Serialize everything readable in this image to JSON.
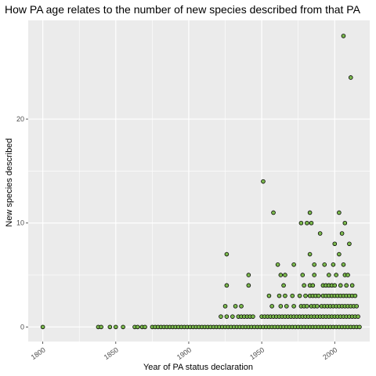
{
  "chart_data": {
    "type": "scatter",
    "title": "How PA age relates to the number of new species described from that PA",
    "xlabel": "Year of PA status declaration",
    "ylabel": "New species described",
    "xlim": [
      1790,
      2024
    ],
    "ylim": [
      -1.4,
      29.5
    ],
    "x_ticks": [
      1800,
      1850,
      1900,
      1950,
      2000
    ],
    "x_tick_labels": [
      "1800",
      "1850",
      "1900",
      "1950",
      "2000"
    ],
    "y_ticks": [
      0,
      10,
      20
    ],
    "y_tick_labels": [
      "0",
      "10",
      "20"
    ],
    "grid": true,
    "legend": "none",
    "colors": {
      "panel_background": "#ebebeb",
      "grid_major": "#ffffff",
      "point_fill": "#7cba4e",
      "point_stroke": "#000000"
    },
    "points": [
      {
        "x": 1800,
        "y": 0
      },
      {
        "x": 1838,
        "y": 0
      },
      {
        "x": 1840,
        "y": 0
      },
      {
        "x": 1846,
        "y": 0
      },
      {
        "x": 1850,
        "y": 0
      },
      {
        "x": 1855,
        "y": 0
      },
      {
        "x": 1863,
        "y": 0
      },
      {
        "x": 1865,
        "y": 0
      },
      {
        "x": 1868,
        "y": 0
      },
      {
        "x": 1870,
        "y": 0
      },
      {
        "x": 1875,
        "y": 0
      },
      {
        "x": 1877,
        "y": 0
      },
      {
        "x": 1879,
        "y": 0
      },
      {
        "x": 1881,
        "y": 0
      },
      {
        "x": 1883,
        "y": 0
      },
      {
        "x": 1885,
        "y": 0
      },
      {
        "x": 1887,
        "y": 0
      },
      {
        "x": 1889,
        "y": 0
      },
      {
        "x": 1891,
        "y": 0
      },
      {
        "x": 1893,
        "y": 0
      },
      {
        "x": 1895,
        "y": 0
      },
      {
        "x": 1897,
        "y": 0
      },
      {
        "x": 1899,
        "y": 0
      },
      {
        "x": 1901,
        "y": 0
      },
      {
        "x": 1903,
        "y": 0
      },
      {
        "x": 1905,
        "y": 0
      },
      {
        "x": 1907,
        "y": 0
      },
      {
        "x": 1909,
        "y": 0
      },
      {
        "x": 1911,
        "y": 0
      },
      {
        "x": 1913,
        "y": 0
      },
      {
        "x": 1915,
        "y": 0
      },
      {
        "x": 1917,
        "y": 0
      },
      {
        "x": 1919,
        "y": 0
      },
      {
        "x": 1921,
        "y": 0
      },
      {
        "x": 1923,
        "y": 0
      },
      {
        "x": 1925,
        "y": 0
      },
      {
        "x": 1927,
        "y": 0
      },
      {
        "x": 1929,
        "y": 0
      },
      {
        "x": 1931,
        "y": 0
      },
      {
        "x": 1933,
        "y": 0
      },
      {
        "x": 1935,
        "y": 0
      },
      {
        "x": 1937,
        "y": 0
      },
      {
        "x": 1939,
        "y": 0
      },
      {
        "x": 1941,
        "y": 0
      },
      {
        "x": 1943,
        "y": 0
      },
      {
        "x": 1945,
        "y": 0
      },
      {
        "x": 1947,
        "y": 0
      },
      {
        "x": 1949,
        "y": 0
      },
      {
        "x": 1951,
        "y": 0
      },
      {
        "x": 1953,
        "y": 0
      },
      {
        "x": 1955,
        "y": 0
      },
      {
        "x": 1957,
        "y": 0
      },
      {
        "x": 1959,
        "y": 0
      },
      {
        "x": 1961,
        "y": 0
      },
      {
        "x": 1963,
        "y": 0
      },
      {
        "x": 1965,
        "y": 0
      },
      {
        "x": 1967,
        "y": 0
      },
      {
        "x": 1969,
        "y": 0
      },
      {
        "x": 1971,
        "y": 0
      },
      {
        "x": 1973,
        "y": 0
      },
      {
        "x": 1975,
        "y": 0
      },
      {
        "x": 1977,
        "y": 0
      },
      {
        "x": 1979,
        "y": 0
      },
      {
        "x": 1981,
        "y": 0
      },
      {
        "x": 1983,
        "y": 0
      },
      {
        "x": 1985,
        "y": 0
      },
      {
        "x": 1987,
        "y": 0
      },
      {
        "x": 1989,
        "y": 0
      },
      {
        "x": 1991,
        "y": 0
      },
      {
        "x": 1993,
        "y": 0
      },
      {
        "x": 1995,
        "y": 0
      },
      {
        "x": 1997,
        "y": 0
      },
      {
        "x": 1999,
        "y": 0
      },
      {
        "x": 2001,
        "y": 0
      },
      {
        "x": 2003,
        "y": 0
      },
      {
        "x": 2005,
        "y": 0
      },
      {
        "x": 2007,
        "y": 0
      },
      {
        "x": 2009,
        "y": 0
      },
      {
        "x": 2011,
        "y": 0
      },
      {
        "x": 2013,
        "y": 0
      },
      {
        "x": 2015,
        "y": 0
      },
      {
        "x": 2017,
        "y": 0
      },
      {
        "x": 1922,
        "y": 1
      },
      {
        "x": 1926,
        "y": 1
      },
      {
        "x": 1930,
        "y": 1
      },
      {
        "x": 1934,
        "y": 1
      },
      {
        "x": 1936,
        "y": 1
      },
      {
        "x": 1938,
        "y": 1
      },
      {
        "x": 1940,
        "y": 1
      },
      {
        "x": 1942,
        "y": 1
      },
      {
        "x": 1944,
        "y": 1
      },
      {
        "x": 1950,
        "y": 1
      },
      {
        "x": 1952,
        "y": 1
      },
      {
        "x": 1954,
        "y": 1
      },
      {
        "x": 1956,
        "y": 1
      },
      {
        "x": 1958,
        "y": 1
      },
      {
        "x": 1960,
        "y": 1
      },
      {
        "x": 1962,
        "y": 1
      },
      {
        "x": 1964,
        "y": 1
      },
      {
        "x": 1966,
        "y": 1
      },
      {
        "x": 1968,
        "y": 1
      },
      {
        "x": 1970,
        "y": 1
      },
      {
        "x": 1972,
        "y": 1
      },
      {
        "x": 1974,
        "y": 1
      },
      {
        "x": 1976,
        "y": 1
      },
      {
        "x": 1978,
        "y": 1
      },
      {
        "x": 1980,
        "y": 1
      },
      {
        "x": 1982,
        "y": 1
      },
      {
        "x": 1984,
        "y": 1
      },
      {
        "x": 1986,
        "y": 1
      },
      {
        "x": 1988,
        "y": 1
      },
      {
        "x": 1990,
        "y": 1
      },
      {
        "x": 1992,
        "y": 1
      },
      {
        "x": 1994,
        "y": 1
      },
      {
        "x": 1996,
        "y": 1
      },
      {
        "x": 1998,
        "y": 1
      },
      {
        "x": 2000,
        "y": 1
      },
      {
        "x": 2002,
        "y": 1
      },
      {
        "x": 2004,
        "y": 1
      },
      {
        "x": 2006,
        "y": 1
      },
      {
        "x": 2008,
        "y": 1
      },
      {
        "x": 2010,
        "y": 1
      },
      {
        "x": 2012,
        "y": 1
      },
      {
        "x": 2014,
        "y": 1
      },
      {
        "x": 2016,
        "y": 1
      },
      {
        "x": 1925,
        "y": 2
      },
      {
        "x": 1932,
        "y": 2
      },
      {
        "x": 1936,
        "y": 2
      },
      {
        "x": 1957,
        "y": 2
      },
      {
        "x": 1963,
        "y": 2
      },
      {
        "x": 1967,
        "y": 2
      },
      {
        "x": 1972,
        "y": 2
      },
      {
        "x": 1977,
        "y": 2
      },
      {
        "x": 1979,
        "y": 2
      },
      {
        "x": 1981,
        "y": 2
      },
      {
        "x": 1984,
        "y": 2
      },
      {
        "x": 1986,
        "y": 2
      },
      {
        "x": 1988,
        "y": 2
      },
      {
        "x": 1991,
        "y": 2
      },
      {
        "x": 1993,
        "y": 2
      },
      {
        "x": 1995,
        "y": 2
      },
      {
        "x": 1997,
        "y": 2
      },
      {
        "x": 1999,
        "y": 2
      },
      {
        "x": 2001,
        "y": 2
      },
      {
        "x": 2003,
        "y": 2
      },
      {
        "x": 2005,
        "y": 2
      },
      {
        "x": 2007,
        "y": 2
      },
      {
        "x": 2009,
        "y": 2
      },
      {
        "x": 2011,
        "y": 2
      },
      {
        "x": 2013,
        "y": 2
      },
      {
        "x": 2015,
        "y": 2
      },
      {
        "x": 1955,
        "y": 3
      },
      {
        "x": 1962,
        "y": 3
      },
      {
        "x": 1966,
        "y": 3
      },
      {
        "x": 1971,
        "y": 3
      },
      {
        "x": 1976,
        "y": 3
      },
      {
        "x": 1980,
        "y": 3
      },
      {
        "x": 1983,
        "y": 3
      },
      {
        "x": 1985,
        "y": 3
      },
      {
        "x": 1987,
        "y": 3
      },
      {
        "x": 1989,
        "y": 3
      },
      {
        "x": 1992,
        "y": 3
      },
      {
        "x": 1994,
        "y": 3
      },
      {
        "x": 1996,
        "y": 3
      },
      {
        "x": 1998,
        "y": 3
      },
      {
        "x": 2000,
        "y": 3
      },
      {
        "x": 2002,
        "y": 3
      },
      {
        "x": 2004,
        "y": 3
      },
      {
        "x": 2006,
        "y": 3
      },
      {
        "x": 2008,
        "y": 3
      },
      {
        "x": 2010,
        "y": 3
      },
      {
        "x": 2012,
        "y": 3
      },
      {
        "x": 2014,
        "y": 3
      },
      {
        "x": 1926,
        "y": 4
      },
      {
        "x": 1941,
        "y": 4
      },
      {
        "x": 1965,
        "y": 4
      },
      {
        "x": 1979,
        "y": 4
      },
      {
        "x": 1983,
        "y": 4
      },
      {
        "x": 1985,
        "y": 4
      },
      {
        "x": 1992,
        "y": 4
      },
      {
        "x": 1994,
        "y": 4
      },
      {
        "x": 1996,
        "y": 4
      },
      {
        "x": 1998,
        "y": 4
      },
      {
        "x": 2000,
        "y": 4
      },
      {
        "x": 2004,
        "y": 4
      },
      {
        "x": 2008,
        "y": 4
      },
      {
        "x": 2012,
        "y": 4
      },
      {
        "x": 1941,
        "y": 5
      },
      {
        "x": 1963,
        "y": 5
      },
      {
        "x": 1966,
        "y": 5
      },
      {
        "x": 1978,
        "y": 5
      },
      {
        "x": 1986,
        "y": 5
      },
      {
        "x": 1996,
        "y": 5
      },
      {
        "x": 2001,
        "y": 5
      },
      {
        "x": 2007,
        "y": 5
      },
      {
        "x": 2009,
        "y": 5
      },
      {
        "x": 1961,
        "y": 6
      },
      {
        "x": 1972,
        "y": 6
      },
      {
        "x": 1986,
        "y": 6
      },
      {
        "x": 1993,
        "y": 6
      },
      {
        "x": 1999,
        "y": 6
      },
      {
        "x": 2006,
        "y": 6
      },
      {
        "x": 1926,
        "y": 7
      },
      {
        "x": 1983,
        "y": 7
      },
      {
        "x": 2003,
        "y": 7
      },
      {
        "x": 2000,
        "y": 8
      },
      {
        "x": 2010,
        "y": 8
      },
      {
        "x": 1990,
        "y": 9
      },
      {
        "x": 2005,
        "y": 9
      },
      {
        "x": 1977,
        "y": 10
      },
      {
        "x": 1981,
        "y": 10
      },
      {
        "x": 1984,
        "y": 10
      },
      {
        "x": 2007,
        "y": 10
      },
      {
        "x": 1958,
        "y": 11
      },
      {
        "x": 1983,
        "y": 11
      },
      {
        "x": 2003,
        "y": 11
      },
      {
        "x": 1951,
        "y": 14
      },
      {
        "x": 2011,
        "y": 24
      },
      {
        "x": 2006,
        "y": 28
      }
    ]
  }
}
